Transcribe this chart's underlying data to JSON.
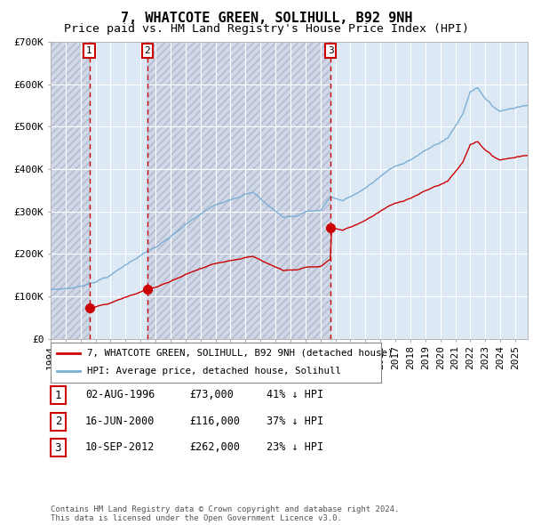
{
  "title": "7, WHATCOTE GREEN, SOLIHULL, B92 9NH",
  "subtitle": "Price paid vs. HM Land Registry's House Price Index (HPI)",
  "ylim": [
    0,
    700000
  ],
  "yticks": [
    0,
    100000,
    200000,
    300000,
    400000,
    500000,
    600000,
    700000
  ],
  "ytick_labels": [
    "£0",
    "£100K",
    "£200K",
    "£300K",
    "£400K",
    "£500K",
    "£600K",
    "£700K"
  ],
  "xstart": 1994.0,
  "xend": 2025.83,
  "purchase_dates": [
    1996.58,
    2000.46,
    2012.69
  ],
  "purchase_prices": [
    73000,
    116000,
    262000
  ],
  "purchase_labels": [
    "1",
    "2",
    "3"
  ],
  "legend_property": "7, WHATCOTE GREEN, SOLIHULL, B92 9NH (detached house)",
  "legend_hpi": "HPI: Average price, detached house, Solihull",
  "table_rows": [
    [
      "1",
      "02-AUG-1996",
      "£73,000",
      "41% ↓ HPI"
    ],
    [
      "2",
      "16-JUN-2000",
      "£116,000",
      "37% ↓ HPI"
    ],
    [
      "3",
      "10-SEP-2012",
      "£262,000",
      "23% ↓ HPI"
    ]
  ],
  "footer": "Contains HM Land Registry data © Crown copyright and database right 2024.\nThis data is licensed under the Open Government Licence v3.0.",
  "property_line_color": "#cc0000",
  "hpi_line_color": "#7bafd4",
  "background_plot": "#dce9f5",
  "hatch_facecolor": "#d0d8e8",
  "hatch_edgecolor": "#b0b8cc",
  "grid_color": "#ffffff",
  "vline_color": "#cc0000",
  "title_fontsize": 11,
  "subtitle_fontsize": 9.5,
  "tick_fontsize": 8,
  "footer_fontsize": 6.5
}
